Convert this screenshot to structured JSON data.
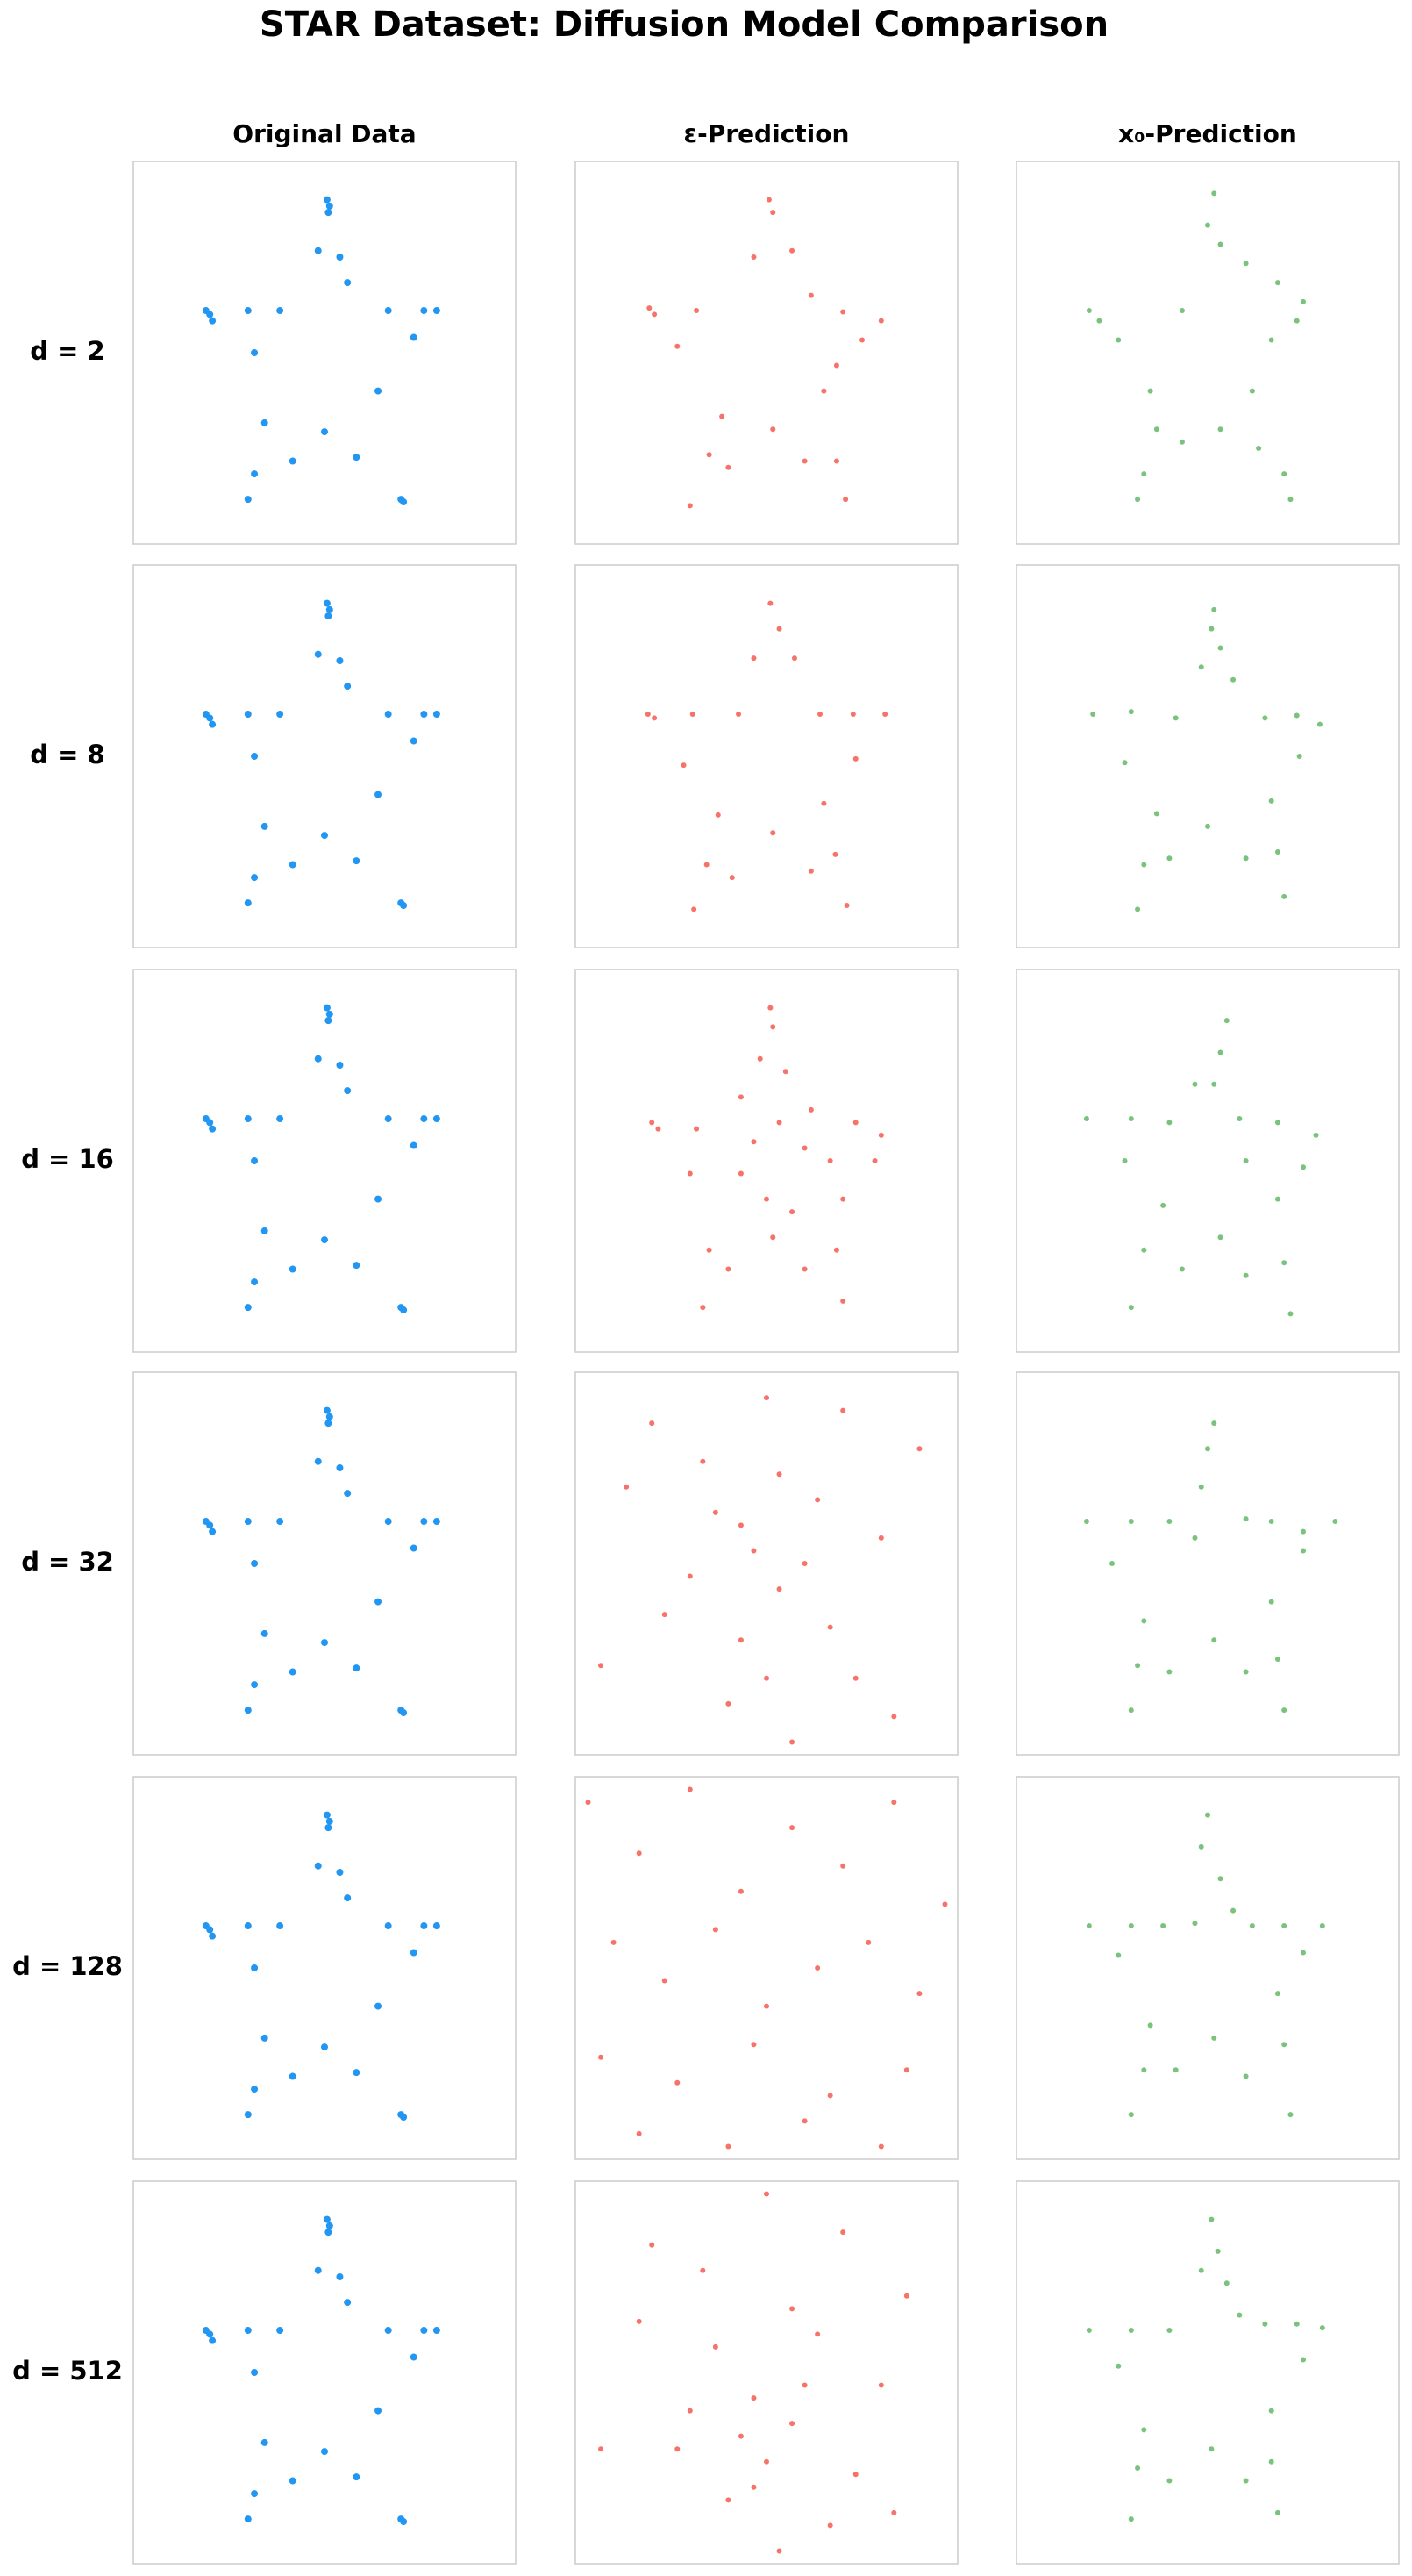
{
  "title": "STAR Dataset: Diffusion Model Comparison",
  "column_titles": [
    "Original Data",
    "ε-Prediction",
    "x₀-Prediction"
  ],
  "row_labels": [
    "d = 2",
    "d = 8",
    "d = 16",
    "d = 32",
    "d = 128",
    "d = 512"
  ],
  "chart_data": [
    {
      "type": "scatter",
      "color": "#2196f3",
      "xlim": [
        -1.5,
        1.5
      ],
      "ylim": [
        -1.5,
        1.5
      ],
      "x": [
        0.02,
        0.04,
        0.03,
        -0.05,
        0.12,
        0.18,
        -0.93,
        -0.9,
        -0.88,
        -0.6,
        -0.35,
        0.5,
        0.78,
        0.88,
        0.7,
        -0.55,
        0.42,
        -0.47,
        -0.55,
        -0.6,
        -0.25,
        0.0,
        0.25,
        0.62,
        0.6
      ],
      "values": [
        1.2,
        1.15,
        1.1,
        0.8,
        0.75,
        0.55,
        0.33,
        0.3,
        0.25,
        0.33,
        0.33,
        0.33,
        0.33,
        0.33,
        0.12,
        0.0,
        -0.3,
        -0.55,
        -0.95,
        -1.15,
        -0.85,
        -0.62,
        -0.82,
        -1.17,
        -1.15
      ]
    },
    {
      "type": "scatter",
      "color": "#f44336",
      "xlim": [
        -1.5,
        1.5
      ],
      "ylim": [
        -1.5,
        1.5
      ],
      "x": [
        0.02,
        0.05,
        -0.1,
        0.2,
        0.35,
        0.6,
        0.9,
        0.75,
        0.55,
        0.45,
        0.55,
        0.62,
        0.3,
        0.05,
        -0.3,
        -0.6,
        -0.45,
        -0.35,
        -0.7,
        -0.92,
        -0.88,
        -0.55
      ],
      "values": [
        1.2,
        1.1,
        0.75,
        0.8,
        0.45,
        0.32,
        0.25,
        0.1,
        -0.1,
        -0.3,
        -0.85,
        -1.15,
        -0.85,
        -0.6,
        -0.9,
        -1.2,
        -0.8,
        -0.5,
        0.05,
        0.35,
        0.3,
        0.33
      ]
    },
    {
      "type": "scatter",
      "color": "#4caf50",
      "xlim": [
        -1.5,
        1.5
      ],
      "ylim": [
        -1.5,
        1.5
      ],
      "x": [
        0.05,
        0.0,
        0.1,
        0.3,
        0.55,
        0.75,
        0.7,
        0.5,
        0.35,
        -0.2,
        -0.93,
        -0.85,
        -0.7,
        -0.45,
        -0.4,
        -0.5,
        -0.55,
        -0.2,
        0.1,
        0.4,
        0.6,
        0.65
      ],
      "values": [
        1.25,
        1.0,
        0.85,
        0.7,
        0.55,
        0.4,
        0.25,
        0.1,
        -0.3,
        0.33,
        0.33,
        0.25,
        0.1,
        -0.3,
        -0.6,
        -0.95,
        -1.15,
        -0.7,
        -0.6,
        -0.75,
        -0.95,
        -1.15
      ]
    },
    {
      "type": "scatter",
      "color": "#2196f3",
      "xlim": [
        -1.5,
        1.5
      ],
      "ylim": [
        -1.5,
        1.5
      ],
      "x": [
        0.02,
        0.04,
        0.03,
        -0.05,
        0.12,
        0.18,
        -0.93,
        -0.9,
        -0.88,
        -0.6,
        -0.35,
        0.5,
        0.78,
        0.88,
        0.7,
        -0.55,
        0.42,
        -0.47,
        -0.55,
        -0.6,
        -0.25,
        0.0,
        0.25,
        0.62,
        0.6
      ],
      "values": [
        1.2,
        1.15,
        1.1,
        0.8,
        0.75,
        0.55,
        0.33,
        0.3,
        0.25,
        0.33,
        0.33,
        0.33,
        0.33,
        0.33,
        0.12,
        0.0,
        -0.3,
        -0.55,
        -0.95,
        -1.15,
        -0.85,
        -0.62,
        -0.82,
        -1.17,
        -1.15
      ]
    },
    {
      "type": "scatter",
      "color": "#f44336",
      "xlim": [
        -1.5,
        1.5
      ],
      "ylim": [
        -1.5,
        1.5
      ],
      "x": [
        0.03,
        0.1,
        0.22,
        0.42,
        0.68,
        0.93,
        0.7,
        0.45,
        0.54,
        0.63,
        0.35,
        0.05,
        -0.27,
        -0.57,
        -0.47,
        -0.38,
        -0.65,
        -0.93,
        -0.88,
        -0.58,
        -0.22,
        -0.1
      ],
      "values": [
        1.2,
        1.0,
        0.77,
        0.33,
        0.33,
        0.33,
        -0.02,
        -0.37,
        -0.77,
        -1.17,
        -0.9,
        -0.6,
        -0.95,
        -1.2,
        -0.85,
        -0.46,
        -0.07,
        0.33,
        0.3,
        0.33,
        0.33,
        0.77
      ]
    },
    {
      "type": "scatter",
      "color": "#4caf50",
      "xlim": [
        -1.5,
        1.5
      ],
      "ylim": [
        -1.5,
        1.5
      ],
      "x": [
        0.05,
        0.1,
        0.2,
        0.45,
        0.7,
        0.88,
        0.72,
        0.5,
        0.55,
        0.6,
        0.3,
        0.0,
        -0.3,
        -0.55,
        -0.5,
        -0.4,
        -0.65,
        -0.9,
        -0.6,
        -0.25,
        -0.05,
        0.03
      ],
      "values": [
        1.15,
        0.85,
        0.6,
        0.3,
        0.32,
        0.25,
        0.0,
        -0.35,
        -0.75,
        -1.1,
        -0.8,
        -0.55,
        -0.8,
        -1.2,
        -0.85,
        -0.45,
        -0.05,
        0.33,
        0.35,
        0.3,
        0.7,
        1.0
      ]
    },
    {
      "type": "scatter",
      "color": "#2196f3",
      "xlim": [
        -1.5,
        1.5
      ],
      "ylim": [
        -1.5,
        1.5
      ],
      "x": [
        0.02,
        0.04,
        0.03,
        -0.05,
        0.12,
        0.18,
        -0.93,
        -0.9,
        -0.88,
        -0.6,
        -0.35,
        0.5,
        0.78,
        0.88,
        0.7,
        -0.55,
        0.42,
        -0.47,
        -0.55,
        -0.6,
        -0.25,
        0.0,
        0.25,
        0.62,
        0.6
      ],
      "values": [
        1.2,
        1.15,
        1.1,
        0.8,
        0.75,
        0.55,
        0.33,
        0.3,
        0.25,
        0.33,
        0.33,
        0.33,
        0.33,
        0.33,
        0.12,
        0.0,
        -0.3,
        -0.55,
        -0.95,
        -1.15,
        -0.85,
        -0.62,
        -0.82,
        -1.17,
        -1.15
      ]
    },
    {
      "type": "scatter",
      "color": "#f44336",
      "xlim": [
        -1.5,
        1.5
      ],
      "ylim": [
        -1.5,
        1.5
      ],
      "x": [
        0.03,
        0.05,
        0.15,
        0.35,
        0.7,
        0.9,
        0.85,
        0.6,
        0.55,
        0.6,
        0.3,
        0.05,
        -0.3,
        -0.5,
        -0.45,
        -0.6,
        -0.9,
        -0.85,
        -0.55,
        -0.2,
        -0.05,
        0.1,
        0.3,
        0.5,
        -0.2,
        0.0,
        0.2,
        -0.1
      ],
      "values": [
        1.2,
        1.05,
        0.7,
        0.4,
        0.3,
        0.2,
        0.0,
        -0.3,
        -0.7,
        -1.1,
        -0.85,
        -0.6,
        -0.85,
        -1.15,
        -0.7,
        -0.1,
        0.3,
        0.25,
        0.25,
        0.5,
        0.8,
        0.3,
        0.1,
        0.0,
        -0.1,
        -0.3,
        -0.4,
        0.15
      ]
    },
    {
      "type": "scatter",
      "color": "#4caf50",
      "xlim": [
        -1.5,
        1.5
      ],
      "ylim": [
        -1.5,
        1.5
      ],
      "x": [
        0.15,
        0.1,
        0.05,
        0.25,
        0.55,
        0.85,
        0.75,
        0.55,
        0.6,
        0.65,
        0.3,
        0.1,
        -0.2,
        -0.6,
        -0.5,
        -0.35,
        -0.65,
        -0.95,
        -0.6,
        -0.3,
        -0.1,
        0.3
      ],
      "values": [
        1.1,
        0.85,
        0.6,
        0.33,
        0.3,
        0.2,
        -0.05,
        -0.3,
        -0.8,
        -1.2,
        -0.9,
        -0.6,
        -0.85,
        -1.15,
        -0.7,
        -0.35,
        0.0,
        0.33,
        0.33,
        0.3,
        0.6,
        0.0
      ]
    },
    {
      "type": "scatter",
      "color": "#2196f3",
      "xlim": [
        -1.5,
        1.5
      ],
      "ylim": [
        -1.5,
        1.5
      ],
      "x": [
        0.02,
        0.04,
        0.03,
        -0.05,
        0.12,
        0.18,
        -0.93,
        -0.9,
        -0.88,
        -0.6,
        -0.35,
        0.5,
        0.78,
        0.88,
        0.7,
        -0.55,
        0.42,
        -0.47,
        -0.55,
        -0.6,
        -0.25,
        0.0,
        0.25,
        0.62,
        0.6
      ],
      "values": [
        1.2,
        1.15,
        1.1,
        0.8,
        0.75,
        0.55,
        0.33,
        0.3,
        0.25,
        0.33,
        0.33,
        0.33,
        0.33,
        0.33,
        0.12,
        0.0,
        -0.3,
        -0.55,
        -0.95,
        -1.15,
        -0.85,
        -0.62,
        -0.82,
        -1.17,
        -1.15
      ]
    },
    {
      "type": "scatter",
      "color": "#f44336",
      "xlim": [
        -1.5,
        1.5
      ],
      "ylim": [
        -1.5,
        1.5
      ],
      "x": [
        -0.2,
        0.1,
        -0.5,
        0.4,
        -0.8,
        0.7,
        0.0,
        -0.3,
        0.3,
        -1.1,
        1.2,
        -0.1,
        0.5,
        -0.6,
        0.2,
        -0.4,
        0.9,
        -0.9,
        0.1,
        -0.2,
        0.6,
        -1.3,
        1.0,
        0.0
      ],
      "values": [
        0.3,
        -0.2,
        0.8,
        0.5,
        -0.4,
        -0.9,
        1.3,
        -1.1,
        0.0,
        0.6,
        0.9,
        0.1,
        -0.5,
        -0.1,
        -1.4,
        0.4,
        0.2,
        1.1,
        0.7,
        -0.6,
        1.2,
        -0.8,
        -1.2,
        -0.9
      ]
    },
    {
      "type": "scatter",
      "color": "#4caf50",
      "xlim": [
        -1.5,
        1.5
      ],
      "ylim": [
        -1.5,
        1.5
      ],
      "x": [
        0.05,
        0.0,
        -0.05,
        0.3,
        0.5,
        0.75,
        1.0,
        0.75,
        0.5,
        0.55,
        0.6,
        0.3,
        0.05,
        -0.3,
        -0.6,
        -0.55,
        -0.5,
        -0.75,
        -0.95,
        -0.6,
        -0.3,
        -0.1
      ],
      "values": [
        1.1,
        0.9,
        0.6,
        0.35,
        0.33,
        0.25,
        0.33,
        0.1,
        -0.3,
        -0.75,
        -1.15,
        -0.85,
        -0.6,
        -0.85,
        -1.15,
        -0.8,
        -0.45,
        0.0,
        0.33,
        0.33,
        0.33,
        0.2
      ]
    },
    {
      "type": "scatter",
      "color": "#2196f3",
      "xlim": [
        -1.5,
        1.5
      ],
      "ylim": [
        -1.5,
        1.5
      ],
      "x": [
        0.02,
        0.04,
        0.03,
        -0.05,
        0.12,
        0.18,
        -0.93,
        -0.9,
        -0.88,
        -0.6,
        -0.35,
        0.5,
        0.78,
        0.88,
        0.7,
        -0.55,
        0.42,
        -0.47,
        -0.55,
        -0.6,
        -0.25,
        0.0,
        0.25,
        0.62,
        0.6
      ],
      "values": [
        1.2,
        1.15,
        1.1,
        0.8,
        0.75,
        0.55,
        0.33,
        0.3,
        0.25,
        0.33,
        0.33,
        0.33,
        0.33,
        0.33,
        0.12,
        0.0,
        -0.3,
        -0.55,
        -0.95,
        -1.15,
        -0.85,
        -0.62,
        -0.82,
        -1.17,
        -1.15
      ]
    },
    {
      "type": "scatter",
      "color": "#f44336",
      "xlim": [
        -1.5,
        1.5
      ],
      "ylim": [
        -1.5,
        1.5
      ],
      "x": [
        -1.4,
        -1.0,
        -0.6,
        -0.2,
        0.2,
        0.6,
        1.0,
        1.4,
        -1.2,
        -0.8,
        -0.4,
        0.0,
        0.4,
        0.8,
        1.2,
        -1.3,
        -0.7,
        -0.1,
        0.5,
        1.1,
        -1.0,
        -0.3,
        0.3,
        0.9
      ],
      "values": [
        1.3,
        0.9,
        1.4,
        0.6,
        1.1,
        0.8,
        1.3,
        0.5,
        0.2,
        -0.1,
        0.3,
        -0.3,
        0.0,
        0.2,
        -0.2,
        -0.7,
        -0.9,
        -0.6,
        -1.0,
        -0.8,
        -1.3,
        -1.4,
        -1.2,
        -1.4
      ]
    },
    {
      "type": "scatter",
      "color": "#4caf50",
      "xlim": [
        -1.5,
        1.5
      ],
      "ylim": [
        -1.5,
        1.5
      ],
      "x": [
        0.0,
        -0.05,
        0.1,
        0.2,
        0.35,
        0.6,
        0.9,
        0.75,
        0.55,
        0.6,
        0.65,
        0.3,
        0.05,
        -0.25,
        -0.6,
        -0.5,
        -0.45,
        -0.7,
        -0.93,
        -0.6,
        -0.35,
        -0.1
      ],
      "values": [
        1.2,
        0.95,
        0.7,
        0.45,
        0.33,
        0.33,
        0.33,
        0.12,
        -0.2,
        -0.6,
        -1.15,
        -0.85,
        -0.55,
        -0.8,
        -1.15,
        -0.8,
        -0.45,
        0.1,
        0.33,
        0.33,
        0.33,
        0.35
      ]
    },
    {
      "type": "scatter",
      "color": "#2196f3",
      "xlim": [
        -1.5,
        1.5
      ],
      "ylim": [
        -1.5,
        1.5
      ],
      "x": [
        0.02,
        0.04,
        0.03,
        -0.05,
        0.12,
        0.18,
        -0.93,
        -0.9,
        -0.88,
        -0.6,
        -0.35,
        0.5,
        0.78,
        0.88,
        0.7,
        -0.55,
        0.42,
        -0.47,
        -0.55,
        -0.6,
        -0.25,
        0.0,
        0.25,
        0.62,
        0.6
      ],
      "values": [
        1.2,
        1.15,
        1.1,
        0.8,
        0.75,
        0.55,
        0.33,
        0.3,
        0.25,
        0.33,
        0.33,
        0.33,
        0.33,
        0.33,
        0.12,
        0.0,
        -0.3,
        -0.55,
        -0.95,
        -1.15,
        -0.85,
        -0.62,
        -0.82,
        -1.17,
        -1.15
      ]
    },
    {
      "type": "scatter",
      "color": "#f44336",
      "xlim": [
        -1.5,
        1.5
      ],
      "ylim": [
        -1.5,
        1.5
      ],
      "x": [
        -0.1,
        0.2,
        -0.4,
        0.4,
        -0.7,
        0.7,
        0.0,
        -0.3,
        0.3,
        -1.0,
        1.1,
        -0.2,
        0.5,
        -0.6,
        0.1,
        -0.5,
        0.9,
        -0.9,
        0.2,
        -0.1,
        0.6,
        -1.3,
        1.0,
        0.0
      ],
      "values": [
        -0.2,
        -0.4,
        0.2,
        0.3,
        -0.6,
        -0.8,
        1.4,
        -1.0,
        -0.1,
        0.4,
        0.6,
        -0.5,
        -1.2,
        -0.3,
        -1.4,
        0.8,
        -0.1,
        1.0,
        0.5,
        -0.9,
        1.1,
        -0.6,
        -1.1,
        -0.7
      ]
    },
    {
      "type": "scatter",
      "color": "#4caf50",
      "xlim": [
        -1.5,
        1.5
      ],
      "ylim": [
        -1.5,
        1.5
      ],
      "x": [
        0.03,
        0.08,
        0.15,
        0.25,
        0.45,
        0.7,
        0.9,
        0.75,
        0.5,
        0.5,
        0.55,
        0.3,
        0.03,
        -0.3,
        -0.6,
        -0.55,
        -0.5,
        -0.7,
        -0.93,
        -0.6,
        -0.3,
        -0.05
      ],
      "values": [
        1.2,
        0.95,
        0.7,
        0.45,
        0.38,
        0.38,
        0.35,
        0.1,
        -0.3,
        -0.7,
        -1.1,
        -0.85,
        -0.6,
        -0.85,
        -1.15,
        -0.75,
        -0.45,
        0.05,
        0.33,
        0.33,
        0.33,
        0.8
      ]
    }
  ]
}
